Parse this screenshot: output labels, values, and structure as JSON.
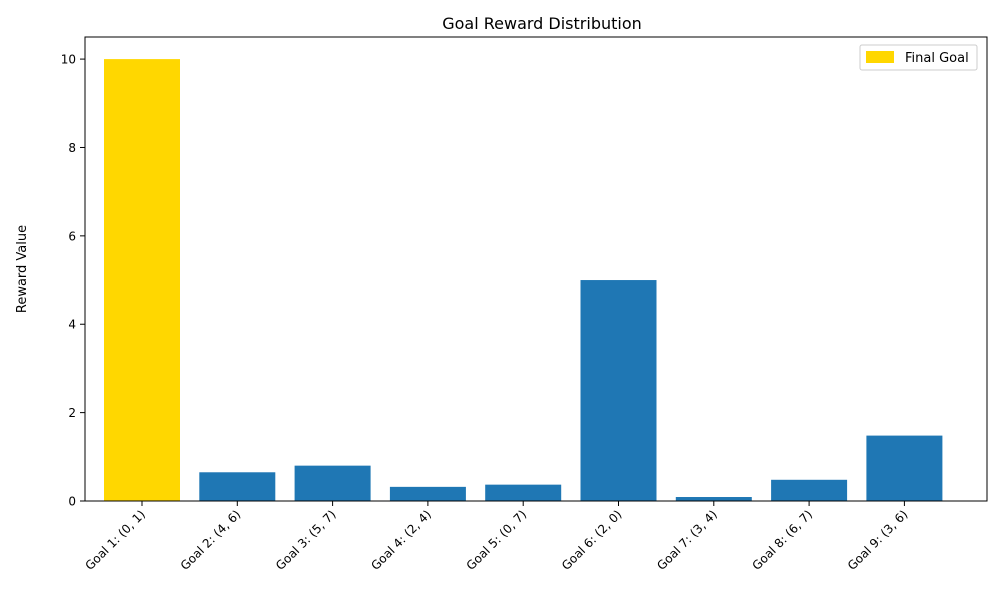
{
  "chart_data": {
    "type": "bar",
    "title": "Goal Reward Distribution",
    "xlabel": "",
    "ylabel": "Reward Value",
    "ylim": [
      0,
      10.5
    ],
    "yticks": [
      0,
      2,
      4,
      6,
      8,
      10
    ],
    "categories": [
      "Goal 1: (0, 1)",
      "Goal 2: (4, 6)",
      "Goal 3: (5, 7)",
      "Goal 4: (2, 4)",
      "Goal 5: (0, 7)",
      "Goal 6: (2, 0)",
      "Goal 7: (3, 4)",
      "Goal 8: (6, 7)",
      "Goal 9: (3, 6)"
    ],
    "values": [
      10,
      0.65,
      0.8,
      0.32,
      0.37,
      5,
      0.09,
      0.48,
      1.48
    ],
    "highlight_index": 0,
    "colors": {
      "default": "#1f77b4",
      "highlight": "#ffd700"
    },
    "legend": {
      "label": "Final Goal",
      "color": "#ffd700",
      "position": "top-right"
    },
    "grid": false
  }
}
